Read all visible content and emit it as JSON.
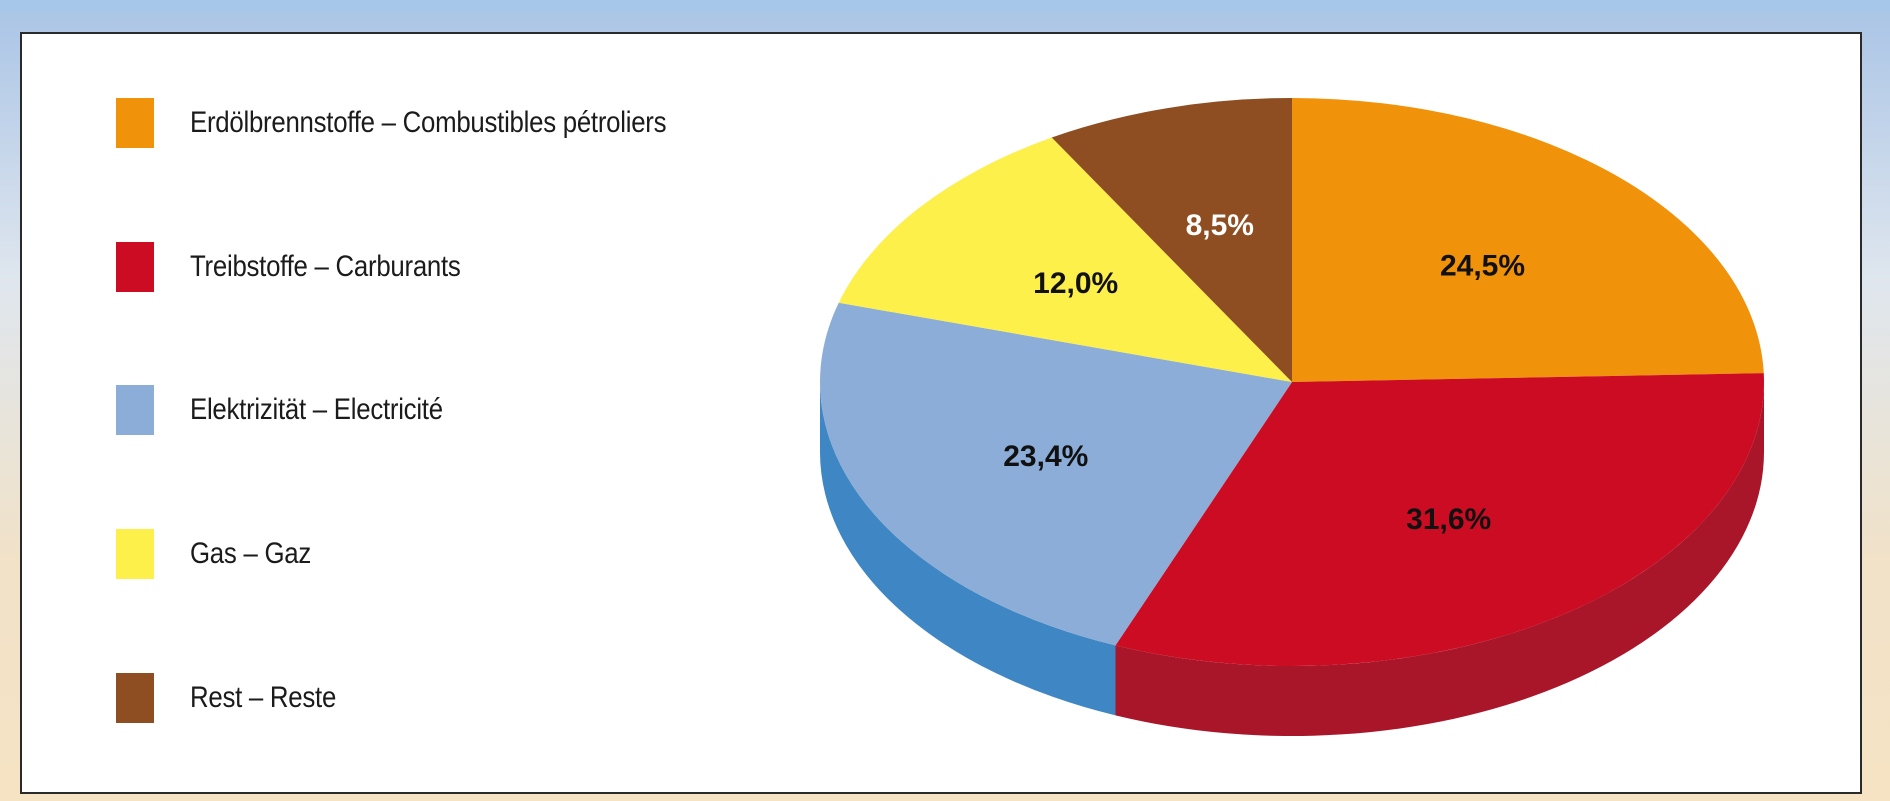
{
  "chart_data": {
    "type": "pie",
    "title": "",
    "legend_position": "left",
    "slices": [
      {
        "name": "Erdölbrennstoffe – Combustibles pétroliers",
        "value": 24.5,
        "label": "24,5%",
        "color": "#f0920a",
        "side_color": "#c7740a",
        "label_color": "#111111"
      },
      {
        "name": "Treibstoffe – Carburants",
        "value": 31.6,
        "label": "31,6%",
        "color": "#cc0c22",
        "side_color": "#a9162a",
        "label_color": "#111111"
      },
      {
        "name": "Elektrizität – Electricité",
        "value": 23.4,
        "label": "23,4%",
        "color": "#8badd7",
        "side_color": "#3e86c4",
        "label_color": "#111111"
      },
      {
        "name": "Gas – Gaz",
        "value": 12.0,
        "label": "12,0%",
        "color": "#fdf04a",
        "side_color": "#d9c93a",
        "label_color": "#111111"
      },
      {
        "name": "Rest – Reste",
        "value": 8.5,
        "label": "8,5%",
        "color": "#8e4e22",
        "side_color": "#6f3b18",
        "label_color": "#ffffff"
      }
    ]
  }
}
